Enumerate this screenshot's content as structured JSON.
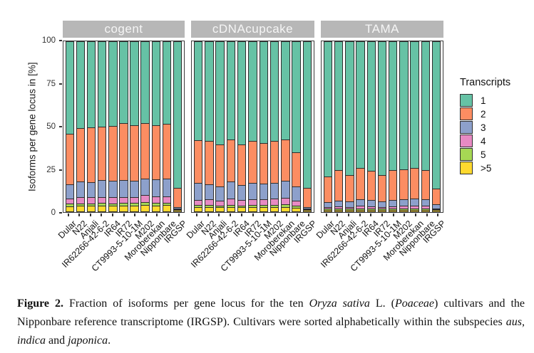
{
  "figure": {
    "caption": {
      "segments": [
        {
          "text": "Figure 2.",
          "bold": true
        },
        {
          "text": "  Fraction of isoforms per gene locus for the ten "
        },
        {
          "text": "Oryza sativa",
          "italic": true
        },
        {
          "text": " L. ("
        },
        {
          "text": "Poaceae",
          "italic": true
        },
        {
          "text": ") cultivars and the Nipponbare reference transcriptome (IRGSP). Cultivars were sorted alphabetically within the subspecies "
        },
        {
          "text": "aus",
          "italic": true
        },
        {
          "text": ", "
        },
        {
          "text": "indica",
          "italic": true
        },
        {
          "text": " and "
        },
        {
          "text": "japonica",
          "italic": true
        },
        {
          "text": "."
        }
      ]
    }
  },
  "chart_data": {
    "type": "bar",
    "stacked": true,
    "title": "",
    "xlabel": "",
    "ylabel": "Isoforms per gene locus in [%]",
    "ylim": [
      0,
      100
    ],
    "yticks": [
      0,
      25,
      50,
      75,
      100
    ],
    "grid": false,
    "legend_position": "right",
    "legend_title": "Transcripts",
    "series_colors": {
      "1": "#66C2A5",
      "2": "#FC8D62",
      "3": "#8DA0CB",
      "4": "#E78AC3",
      "5": "#A6D854",
      ">5": "#FFD92F"
    },
    "stack_order_bottom_to_top": [
      ">5",
      "5",
      "4",
      "3",
      "2",
      "1"
    ],
    "categories": [
      "Dular",
      "N22",
      "Anjali",
      "IR62266-42-6-2",
      "IR64",
      "IR72",
      "CT9993-5-10-1M",
      "M202",
      "Moroberekan",
      "Nipponbare",
      "IRGSP"
    ],
    "panels": [
      {
        "title": "cogent",
        "series": [
          {
            "name": "1",
            "values": [
              54,
              51,
              50.5,
              50,
              49.5,
              48,
              49,
              48,
              49,
              48.5,
              86
            ]
          },
          {
            "name": "2",
            "values": [
              30.2,
              31.5,
              32.3,
              31.7,
              32.6,
              33.4,
              32.8,
              32.7,
              32.1,
              32.2,
              11.4
            ]
          },
          {
            "name": "3",
            "values": [
              8.3,
              9.3,
              9.0,
              9.8,
              9.6,
              10.0,
              9.8,
              9.7,
              10.1,
              10.3,
              1.1
            ]
          },
          {
            "name": "4",
            "values": [
              3.0,
              3.4,
              3.4,
              3.5,
              3.5,
              3.6,
              3.5,
              4.2,
              3.8,
              3.8,
              0.4
            ]
          },
          {
            "name": "5",
            "values": [
              1.5,
              1.5,
              1.5,
              1.5,
              1.5,
              1.5,
              1.5,
              1.6,
              1.5,
              1.6,
              0.3
            ]
          },
          {
            "name": ">5",
            "values": [
              3.0,
              3.3,
              3.3,
              3.5,
              3.3,
              3.5,
              3.4,
              3.8,
              3.5,
              3.6,
              0.8
            ]
          }
        ]
      },
      {
        "title": "cDNAcupcake",
        "series": [
          {
            "name": "1",
            "values": [
              58,
              58.5,
              60.5,
              57.5,
              60.5,
              58.5,
              59.5,
              58.5,
              57.5,
              65,
              86.2
            ]
          },
          {
            "name": "2",
            "values": [
              25,
              25.7,
              24.8,
              25,
              24,
              24.5,
              24.2,
              24.5,
              24.6,
              20.5,
              11.2
            ]
          },
          {
            "name": "3",
            "values": [
              10.2,
              8.6,
              8.3,
              10,
              8.8,
              9.8,
              9.3,
              9.5,
              9.9,
              8.4,
              1.1
            ]
          },
          {
            "name": "4",
            "values": [
              3.2,
              3.4,
              3.0,
              3.6,
              3.2,
              3.4,
              3.3,
              3.6,
              3.9,
              2.9,
              0.4
            ]
          },
          {
            "name": "5",
            "values": [
              1.2,
              1.3,
              1.1,
              1.3,
              1.2,
              1.3,
              1.3,
              1.3,
              1.4,
              1.1,
              0.3
            ]
          },
          {
            "name": ">5",
            "values": [
              2.4,
              2.5,
              2.3,
              2.6,
              2.3,
              2.5,
              2.4,
              2.6,
              2.7,
              2.1,
              0.8
            ]
          }
        ]
      },
      {
        "title": "TAMA",
        "series": [
          {
            "name": "1",
            "values": [
              79.5,
              75.5,
              78.5,
              74.5,
              76,
              78.5,
              75.5,
              75,
              74.5,
              75.5,
              86.5
            ]
          },
          {
            "name": "2",
            "values": [
              15.1,
              18.3,
              15.7,
              18.3,
              17.2,
              15.7,
              17.7,
              17.8,
              18,
              17.2,
              9.3
            ]
          },
          {
            "name": "3",
            "values": [
              2.8,
              3.3,
              3.1,
              4.0,
              3.8,
              3.1,
              3.8,
              4.0,
              4.2,
              4.1,
              2.4
            ]
          },
          {
            "name": "4",
            "values": [
              1.1,
              1.3,
              1.2,
              1.4,
              1.3,
              1.2,
              1.3,
              1.4,
              1.5,
              1.4,
              0.6
            ]
          },
          {
            "name": "5",
            "values": [
              0.7,
              0.7,
              0.7,
              0.8,
              0.8,
              0.7,
              0.8,
              0.8,
              0.8,
              0.8,
              0.4
            ]
          },
          {
            "name": ">5",
            "values": [
              0.8,
              0.9,
              0.8,
              1.0,
              0.9,
              0.8,
              0.9,
              1.0,
              1.0,
              1.0,
              0.8
            ]
          }
        ]
      }
    ]
  },
  "style": {
    "panel_strip_bg": "#b7b7b7",
    "panel_strip_text": "#f5f5f5",
    "bar_border": "#2e2e2e",
    "axis_color": "#333333"
  }
}
